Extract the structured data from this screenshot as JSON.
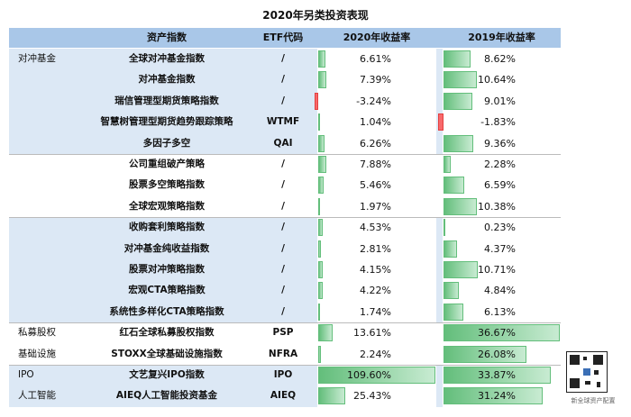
{
  "title": "2020年另类投资表现",
  "header": {
    "col_name": "资产指数",
    "col_etf": "ETF代码",
    "col_2020": "2020年收益率",
    "col_2019": "2019年收益率"
  },
  "rows": [
    {
      "category": "对冲基金",
      "name": "全球对冲基金指数",
      "etf": "/",
      "r2020": "6.61%",
      "r2019": "8.62%"
    },
    {
      "category": "",
      "name": "对冲基金指数",
      "etf": "/",
      "r2020": "7.39%",
      "r2019": "10.64%"
    },
    {
      "category": "",
      "name": "瑞信管理型期货策略指数",
      "etf": "/",
      "r2020": "-3.24%",
      "r2019": "9.01%"
    },
    {
      "category": "",
      "name": "智慧树管理型期货趋势跟踪策略",
      "etf": "WTMF",
      "r2020": "1.04%",
      "r2019": "-1.83%"
    },
    {
      "category": "",
      "name": "多因子多空",
      "etf": "QAI",
      "r2020": "6.26%",
      "r2019": "9.36%"
    },
    {
      "category": "",
      "name": "公司重组破产策略",
      "etf": "/",
      "r2020": "7.88%",
      "r2019": "2.28%"
    },
    {
      "category": "",
      "name": "股票多空策略指数",
      "etf": "/",
      "r2020": "5.46%",
      "r2019": "6.59%"
    },
    {
      "category": "",
      "name": "全球宏观策略指数",
      "etf": "/",
      "r2020": "1.97%",
      "r2019": "10.38%"
    },
    {
      "category": "",
      "name": "收购套利策略指数",
      "etf": "/",
      "r2020": "4.53%",
      "r2019": "0.23%"
    },
    {
      "category": "",
      "name": "对冲基金纯收益指数",
      "etf": "/",
      "r2020": "2.81%",
      "r2019": "4.37%"
    },
    {
      "category": "",
      "name": "股票对冲策略指数",
      "etf": "/",
      "r2020": "4.15%",
      "r2019": "10.71%"
    },
    {
      "category": "",
      "name": "宏观CTA策略指数",
      "etf": "/",
      "r2020": "4.22%",
      "r2019": "4.84%"
    },
    {
      "category": "",
      "name": "系统性多样化CTA策略指数",
      "etf": "/",
      "r2020": "1.74%",
      "r2019": "6.13%"
    },
    {
      "category": "私募股权",
      "name": "红石全球私募股权指数",
      "etf": "PSP",
      "r2020": "13.61%",
      "r2019": "36.67%"
    },
    {
      "category": "基础设施",
      "name": "STOXX全球基础设施指数",
      "etf": "NFRA",
      "r2020": "2.24%",
      "r2019": "26.08%"
    },
    {
      "category": "IPO",
      "name": "文艺复兴IPO指数",
      "etf": "IPO",
      "r2020": "109.60%",
      "r2019": "33.87%"
    },
    {
      "category": "人工智能",
      "name": "AIEQ人工智能投资基金",
      "etf": "AIEQ",
      "r2020": "25.43%",
      "r2019": "31.24%"
    }
  ],
  "values2020": [
    6.61,
    7.39,
    -3.24,
    1.04,
    6.26,
    7.88,
    5.46,
    1.97,
    4.53,
    2.81,
    4.15,
    4.22,
    1.74,
    13.61,
    2.24,
    109.6,
    25.43
  ],
  "values2019": [
    8.62,
    10.64,
    9.01,
    -1.83,
    9.36,
    2.28,
    6.59,
    10.38,
    0.23,
    4.37,
    10.71,
    4.84,
    6.13,
    36.67,
    26.08,
    33.87,
    31.24
  ],
  "row_shading": [
    "blue",
    "blue",
    "blue",
    "blue",
    "blue",
    "white",
    "white",
    "white",
    "blue",
    "blue",
    "blue",
    "blue",
    "blue",
    "white",
    "white",
    "blue",
    "blue"
  ],
  "colors": {
    "header": "#a9c7e8",
    "band": "#dce8f5",
    "positive_bar": "#63be7b",
    "negative_bar": "#f8696b"
  },
  "watermark": "新全球资产配置"
}
